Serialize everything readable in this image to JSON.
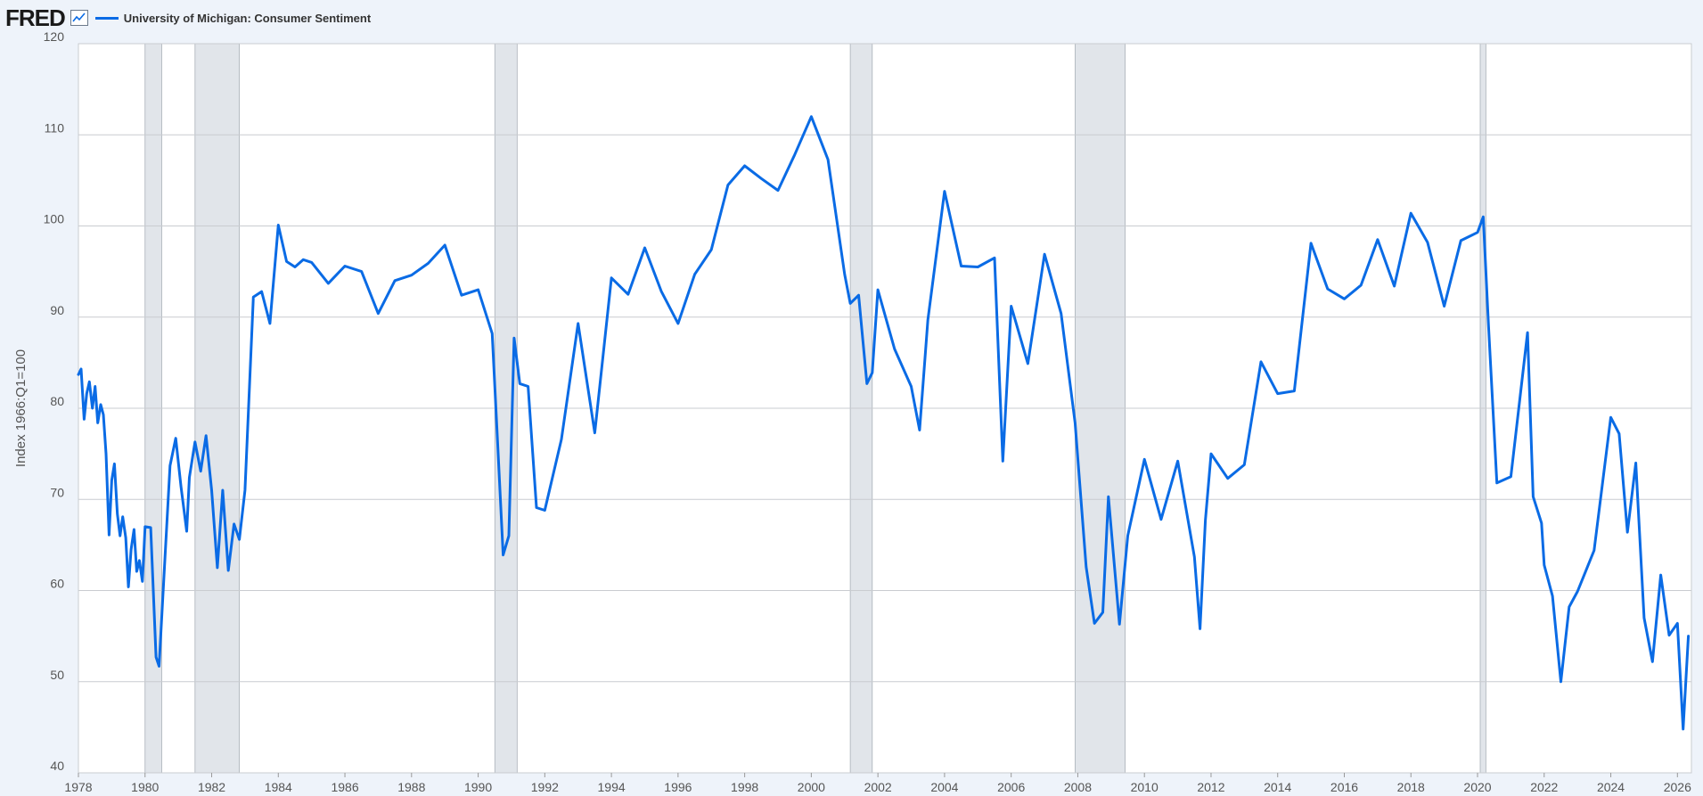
{
  "header": {
    "logo_text": "FRED",
    "graph_icon": "line-chart-icon",
    "series_title": "University of Michigan: Consumer Sentiment"
  },
  "colors": {
    "line": "#0a6be5",
    "recession": "#e1e5ea",
    "background": "#eef3fa",
    "plot_background": "#ffffff",
    "grid": "#c9ccd0"
  },
  "chart_data": {
    "type": "line",
    "title": "University of Michigan: Consumer Sentiment",
    "xlabel": "",
    "ylabel": "Index 1966:Q1=100",
    "xlim": [
      1978.0,
      2026.42
    ],
    "ylim": [
      40,
      120
    ],
    "yticks": [
      40,
      50,
      60,
      70,
      80,
      90,
      100,
      110,
      120
    ],
    "xticks": [
      "1978",
      "1980",
      "1982",
      "1984",
      "1986",
      "1988",
      "1990",
      "1992",
      "1994",
      "1996",
      "1998",
      "2000",
      "2002",
      "2004",
      "2006",
      "2008",
      "2010",
      "2012",
      "2014",
      "2016",
      "2018",
      "2020",
      "2022",
      "2024",
      "2026"
    ],
    "grid": true,
    "legend_position": "top-left",
    "recessions": [
      [
        1980.0,
        1980.5
      ],
      [
        1981.5,
        1982.83
      ],
      [
        1990.5,
        1991.17
      ],
      [
        2001.17,
        2001.83
      ],
      [
        2007.92,
        2009.42
      ],
      [
        2020.08,
        2020.25
      ]
    ],
    "series": [
      {
        "name": "University of Michigan: Consumer Sentiment",
        "x": [
          1978.0,
          1978.08,
          1978.17,
          1978.25,
          1978.33,
          1978.42,
          1978.5,
          1978.58,
          1978.67,
          1978.75,
          1978.83,
          1978.92,
          1979.0,
          1979.08,
          1979.17,
          1979.25,
          1979.33,
          1979.42,
          1979.5,
          1979.58,
          1979.67,
          1979.75,
          1979.83,
          1979.92,
          1980.0,
          1980.17,
          1980.33,
          1980.42,
          1980.58,
          1980.75,
          1980.92,
          1981.08,
          1981.25,
          1981.33,
          1981.5,
          1981.67,
          1981.83,
          1982.0,
          1982.17,
          1982.33,
          1982.5,
          1982.67,
          1982.83,
          1983.0,
          1983.25,
          1983.5,
          1983.75,
          1984.0,
          1984.25,
          1984.5,
          1984.75,
          1985.0,
          1985.5,
          1986.0,
          1986.5,
          1987.0,
          1987.5,
          1988.0,
          1988.5,
          1989.0,
          1989.5,
          1990.0,
          1990.42,
          1990.58,
          1990.75,
          1990.92,
          1991.08,
          1991.25,
          1991.5,
          1991.75,
          1992.0,
          1992.5,
          1993.0,
          1993.5,
          1994.0,
          1994.5,
          1995.0,
          1995.5,
          1996.0,
          1996.5,
          1997.0,
          1997.5,
          1998.0,
          1998.5,
          1999.0,
          1999.5,
          2000.0,
          2000.5,
          2001.0,
          2001.17,
          2001.42,
          2001.67,
          2001.83,
          2002.0,
          2002.5,
          2003.0,
          2003.25,
          2003.5,
          2004.0,
          2004.5,
          2005.0,
          2005.5,
          2005.75,
          2006.0,
          2006.5,
          2007.0,
          2007.5,
          2007.92,
          2008.25,
          2008.5,
          2008.75,
          2008.92,
          2009.25,
          2009.5,
          2010.0,
          2010.5,
          2011.0,
          2011.5,
          2011.67,
          2011.83,
          2012.0,
          2012.5,
          2013.0,
          2013.5,
          2014.0,
          2014.5,
          2015.0,
          2015.5,
          2016.0,
          2016.5,
          2017.0,
          2017.5,
          2018.0,
          2018.5,
          2019.0,
          2019.5,
          2020.0,
          2020.17,
          2020.33,
          2020.58,
          2021.0,
          2021.5,
          2021.67,
          2021.92,
          2022.0,
          2022.25,
          2022.5,
          2022.75,
          2023.0,
          2023.5,
          2024.0,
          2024.25,
          2024.5,
          2024.75,
          2025.0,
          2025.25,
          2025.5,
          2025.75,
          2026.0,
          2026.17,
          2026.33
        ],
        "values": [
          83.7,
          84.3,
          78.8,
          81.6,
          82.9,
          80.0,
          82.4,
          78.4,
          80.4,
          79.3,
          75.0,
          66.1,
          72.1,
          73.9,
          68.4,
          66.0,
          68.1,
          65.8,
          60.4,
          64.5,
          66.7,
          62.1,
          63.3,
          61.0,
          67.0,
          66.9,
          52.7,
          51.7,
          62.3,
          73.7,
          76.7,
          71.4,
          66.5,
          72.4,
          76.3,
          73.1,
          77.0,
          71.0,
          62.5,
          71.0,
          62.2,
          67.3,
          65.6,
          71.0,
          92.2,
          92.8,
          89.3,
          100.1,
          96.1,
          95.5,
          96.3,
          96.0,
          93.7,
          95.6,
          95.0,
          90.4,
          94.0,
          94.6,
          95.9,
          97.9,
          92.4,
          93.0,
          88.2,
          76.4,
          63.9,
          66.0,
          87.7,
          82.7,
          82.4,
          69.1,
          68.8,
          76.6,
          89.3,
          77.3,
          94.3,
          92.5,
          97.6,
          92.8,
          89.3,
          94.7,
          97.4,
          104.5,
          106.6,
          105.2,
          103.9,
          107.8,
          112.0,
          107.3,
          94.7,
          91.5,
          92.4,
          82.7,
          83.9,
          93.0,
          86.5,
          82.4,
          77.6,
          89.7,
          103.8,
          95.6,
          95.5,
          96.5,
          74.2,
          91.2,
          84.9,
          96.9,
          90.4,
          78.4,
          62.6,
          56.4,
          57.6,
          70.3,
          56.3,
          66.0,
          74.4,
          67.8,
          74.2,
          63.7,
          55.8,
          67.7,
          75.0,
          72.3,
          73.8,
          85.1,
          81.6,
          81.9,
          98.1,
          93.1,
          92.0,
          93.5,
          98.5,
          93.4,
          101.4,
          98.2,
          91.2,
          98.4,
          99.3,
          101.0,
          89.1,
          71.8,
          72.5,
          88.3,
          70.3,
          67.4,
          62.8,
          59.4,
          50.0,
          58.2,
          59.9,
          64.4,
          79.0,
          77.2,
          66.4,
          74.0,
          57.0,
          52.2,
          61.7,
          55.1,
          56.4,
          44.8,
          55.0
        ]
      }
    ]
  }
}
